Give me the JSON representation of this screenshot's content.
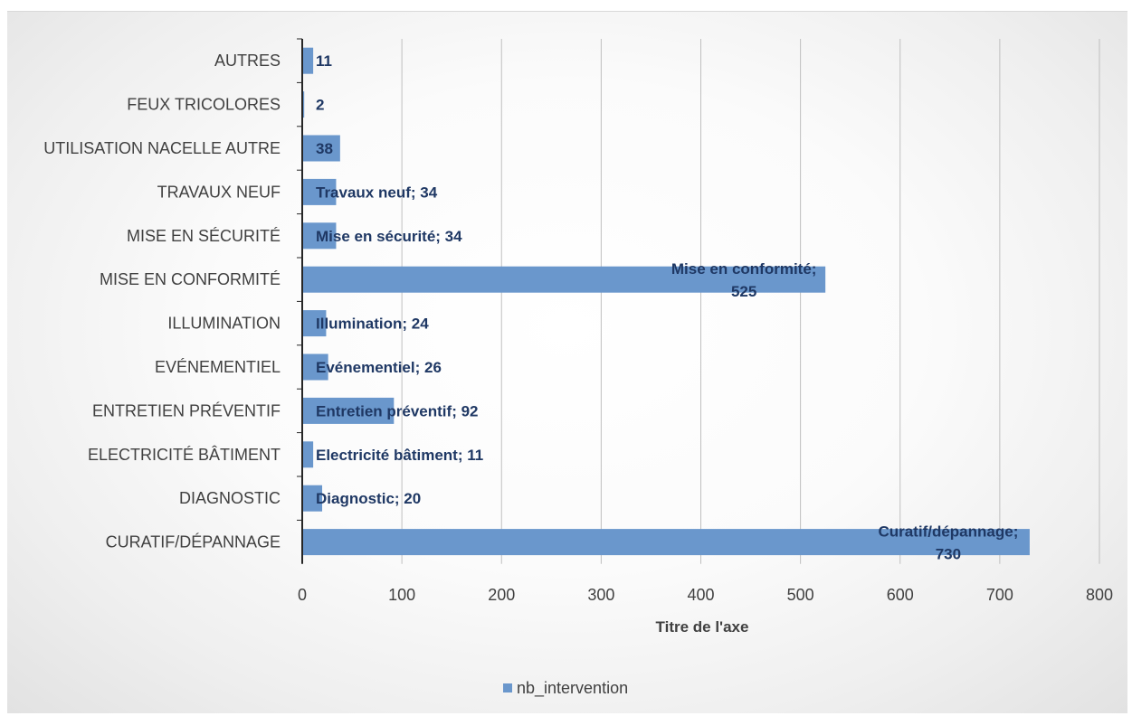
{
  "chart_data": {
    "type": "bar",
    "orientation": "horizontal",
    "categories": [
      "AUTRES",
      "FEUX TRICOLORES",
      "UTILISATION NACELLE AUTRE",
      "TRAVAUX NEUF",
      "MISE EN SÉCURITÉ",
      "MISE EN CONFORMITÉ",
      "ILLUMINATION",
      "EVÉNEMENTIEL",
      "ENTRETIEN PRÉVENTIF",
      "ELECTRICITÉ BÂTIMENT",
      "DIAGNOSTIC",
      "CURATIF/DÉPANNAGE"
    ],
    "series": [
      {
        "name": "nb_intervention",
        "values": [
          11,
          2,
          38,
          34,
          34,
          525,
          24,
          26,
          92,
          11,
          20,
          730
        ]
      }
    ],
    "data_labels": [
      [
        "11"
      ],
      [
        "2"
      ],
      [
        "38"
      ],
      [
        "Travaux neuf; 34"
      ],
      [
        "Mise en sécurité; 34"
      ],
      [
        "Mise en conformité;",
        "525"
      ],
      [
        "Illumination; 24"
      ],
      [
        "Evénementiel; 26"
      ],
      [
        "Entretien préventif; 92"
      ],
      [
        "Electricité bâtiment; 11"
      ],
      [
        "Diagnostic; 20"
      ],
      [
        "Curatif/dépannage;",
        "730"
      ]
    ],
    "xlim": [
      0,
      800
    ],
    "xticks": [
      0,
      100,
      200,
      300,
      400,
      500,
      600,
      700,
      800
    ],
    "xlabel": "Titre de l'axe",
    "ylabel": "",
    "grid": true,
    "legend_position": "bottom",
    "colors": {
      "bar": "#6a97cc",
      "data_label": "#1f3864",
      "grid": "#bfbfbf",
      "axis": "#262626",
      "text": "#404040"
    }
  }
}
